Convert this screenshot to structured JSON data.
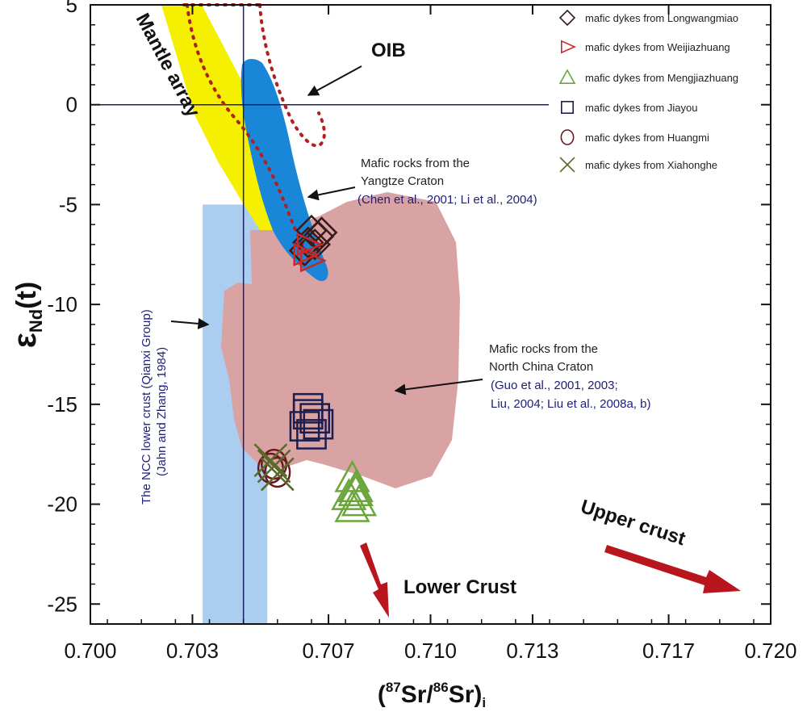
{
  "chart_data": {
    "type": "scatter",
    "xlabel": "(87Sr/86Sr)i",
    "xlabel_parts": {
      "open": "(",
      "sup1": "87",
      "mid": "Sr/",
      "sup2": "86",
      "tail": "Sr)",
      "sub": "i"
    },
    "ylabel": "εNd(t)",
    "ylabel_parts": {
      "epsilon": "ε",
      "sub": "Nd",
      "tail": "(t)"
    },
    "xlim": [
      0.7,
      0.72
    ],
    "ylim": [
      -26,
      5
    ],
    "x_ticks": [
      "0.700",
      "0.703",
      "0.707",
      "0.710",
      "0.713",
      "0.717",
      "0.720"
    ],
    "y_ticks": [
      "5",
      "0",
      "-5",
      "-10",
      "-15",
      "-20",
      "-25"
    ],
    "grid": false,
    "reference_lines": {
      "x": 0.7045,
      "y": 0
    },
    "regions": [
      {
        "name": "ncc-lower-crust",
        "x_range": [
          0.7033,
          0.7052
        ],
        "y_range": [
          -26,
          -5
        ]
      },
      {
        "name": "mantle-array"
      },
      {
        "name": "yangtze-craton-field"
      },
      {
        "name": "north-china-craton-field"
      },
      {
        "name": "oib-field"
      }
    ],
    "annotations": {
      "oib": "OIB",
      "mantle_array": "Mantle array",
      "yangtze_1": "Mafic rocks from the",
      "yangtze_2": "Yangtze Craton",
      "yangtze_3": "(Chen et al., 2001; Li et al., 2004)",
      "ncc_1": "Mafic rocks from the",
      "ncc_2": "North China Craton",
      "ncc_3": "(Guo et al., 2001, 2003;",
      "ncc_4": "Liu, 2004; Liu et al., 2008a, b)",
      "ncc_lower_1": "The NCC lower crust (Qianxi Group)",
      "ncc_lower_2": "(Jahn and Zhang, 1984)",
      "upper_crust": "Upper crust",
      "lower_crust": "Lower Crust"
    },
    "legend_position": "top-right",
    "series": [
      {
        "name": "mafic dykes from Longwangmiao",
        "marker": "diamond",
        "color": "#3a1a1a",
        "points": [
          [
            0.7065,
            -6.3
          ],
          [
            0.7067,
            -6.6
          ],
          [
            0.7064,
            -6.9
          ],
          [
            0.7063,
            -7.3
          ],
          [
            0.7066,
            -7.0
          ],
          [
            0.7068,
            -6.4
          ]
        ]
      },
      {
        "name": "mafic dykes from Weijiazhuang",
        "marker": "triangle-right",
        "color": "#c8282a",
        "points": [
          [
            0.7064,
            -7.0
          ],
          [
            0.7063,
            -7.5
          ],
          [
            0.7065,
            -7.8
          ]
        ]
      },
      {
        "name": "mafic dykes from Mengjiazhuang",
        "marker": "triangle-up",
        "color": "#6aa63a",
        "points": [
          [
            0.7077,
            -18.7
          ],
          [
            0.7078,
            -19.2
          ],
          [
            0.7076,
            -19.6
          ],
          [
            0.7079,
            -19.9
          ],
          [
            0.7077,
            -20.2
          ],
          [
            0.7078,
            -19.4
          ]
        ]
      },
      {
        "name": "mafic dykes from Jiayou",
        "marker": "square",
        "color": "#1d1d4e",
        "points": [
          [
            0.7064,
            -15.2
          ],
          [
            0.7066,
            -15.7
          ],
          [
            0.7063,
            -16.1
          ],
          [
            0.7065,
            -16.5
          ],
          [
            0.7067,
            -16.0
          ],
          [
            0.7064,
            -15.5
          ]
        ]
      },
      {
        "name": "mafic dykes from Huangmi",
        "marker": "circle",
        "color": "#6a1a1a",
        "points": [
          [
            0.7054,
            -18.0
          ],
          [
            0.7055,
            -18.4
          ],
          [
            0.7053,
            -18.2
          ]
        ]
      },
      {
        "name": "mafic dykes from Xiahonghe",
        "marker": "x",
        "color": "#5a6a2a",
        "points": [
          [
            0.7054,
            -18.1
          ],
          [
            0.7055,
            -18.5
          ],
          [
            0.7053,
            -17.8
          ]
        ]
      }
    ]
  },
  "colors": {
    "ncc_lower_crust": "#aacdf0",
    "mantle_array": "#f4f000",
    "yangtze": "#1a86d8",
    "north_china": "#d9a3a3",
    "oib_dots": "#b02020",
    "arrow_red": "#b8161c",
    "ref_line": "#1d1d6e"
  }
}
